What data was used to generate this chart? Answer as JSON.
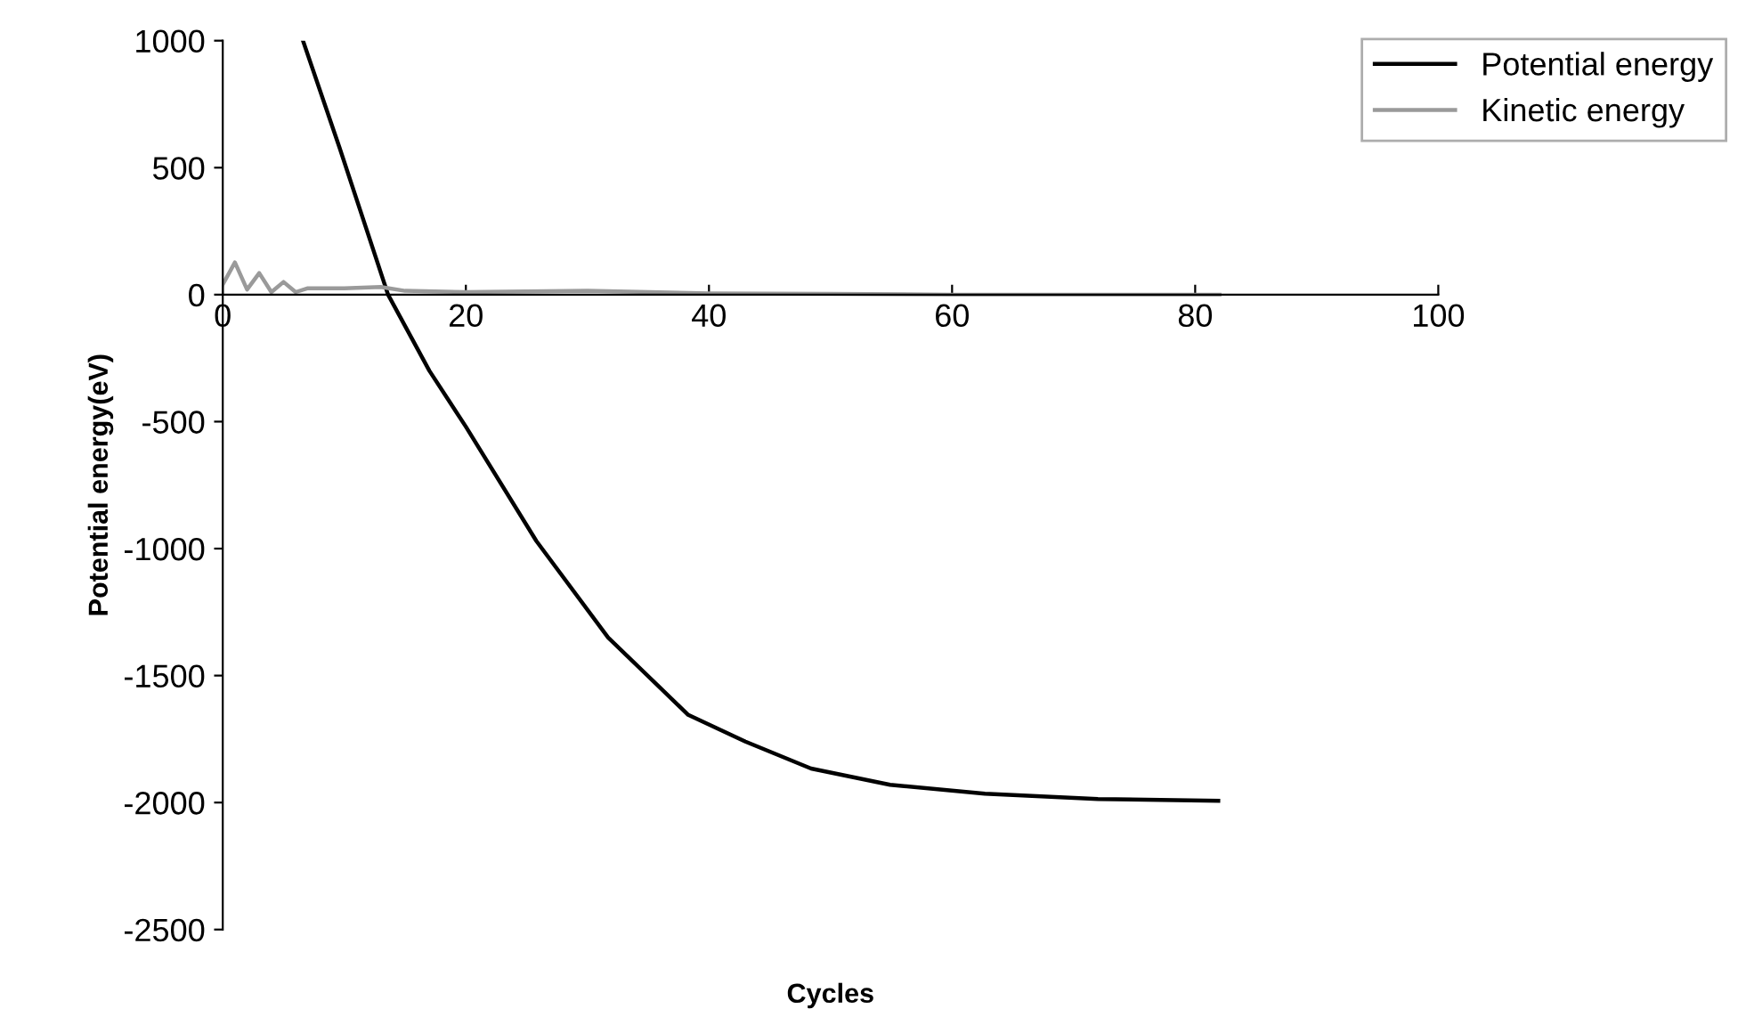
{
  "chart_data": {
    "type": "line",
    "xlabel": "Cycles",
    "ylabel": "Potential energy(eV)",
    "xlim": [
      0,
      100
    ],
    "xticks": [
      0,
      20,
      40,
      60,
      80,
      100
    ],
    "ylim": [
      -2500,
      1000
    ],
    "yticks": [
      -2500,
      -2000,
      -1500,
      -1000,
      -500,
      0,
      500,
      1000
    ],
    "grid": false,
    "legend": "top right",
    "marker": "none",
    "line_style": "solid",
    "series": [
      {
        "name": "Potential energy",
        "color": "#000000",
        "x": [
          6.6,
          9.6,
          13.6,
          17,
          20,
          25.8,
          31.7,
          38.3,
          43,
          48.4,
          54.9,
          62.7,
          72,
          81.9
        ],
        "values": [
          1000,
          580,
          0,
          -300,
          -520,
          -970,
          -1350,
          -1655,
          -1760,
          -1866,
          -1930,
          -1965,
          -1986,
          -1993
        ]
      },
      {
        "name": "Kinetic energy",
        "color": "#9a9a9a",
        "x": [
          0,
          1,
          2,
          3,
          4,
          5,
          6,
          7,
          10,
          13,
          15,
          20,
          30,
          40,
          50,
          60,
          70,
          82
        ],
        "values": [
          40,
          127,
          20,
          85,
          10,
          50,
          10,
          25,
          25,
          30,
          15,
          10,
          15,
          5,
          3,
          0,
          0,
          0
        ]
      }
    ]
  }
}
